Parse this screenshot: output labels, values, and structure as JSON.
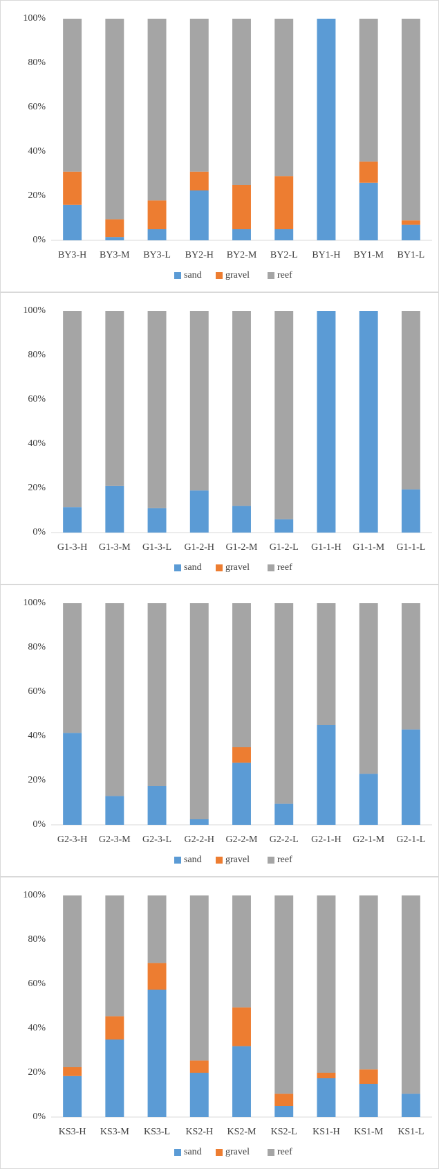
{
  "chart_data": [
    {
      "type": "bar",
      "stacked": true,
      "categories": [
        "BY3-H",
        "BY3-M",
        "BY3-L",
        "BY2-H",
        "BY2-M",
        "BY2-L",
        "BY1-H",
        "BY1-M",
        "BY1-L"
      ],
      "series": [
        {
          "name": "sand",
          "color": "#5b9bd5",
          "values": [
            16,
            1.5,
            5,
            22.5,
            5,
            5,
            100,
            26,
            7
          ]
        },
        {
          "name": "gravel",
          "color": "#ed7d31",
          "values": [
            15,
            8,
            13,
            8.5,
            20,
            24,
            0,
            9.5,
            2
          ]
        },
        {
          "name": "reef",
          "color": "#a5a5a5",
          "values": [
            69,
            90.5,
            82,
            69,
            75,
            71,
            0,
            64.5,
            91
          ]
        }
      ],
      "ylim": [
        0,
        100
      ],
      "yticks": [
        {
          "value": 0,
          "label": "0%"
        },
        {
          "value": 20,
          "label": "20%"
        },
        {
          "value": 40,
          "label": "40%"
        },
        {
          "value": 60,
          "label": "60%"
        },
        {
          "value": 80,
          "label": "80%"
        },
        {
          "value": 100,
          "label": "100%"
        }
      ],
      "legend": "bottom"
    },
    {
      "type": "bar",
      "stacked": true,
      "categories": [
        "G1-3-H",
        "G1-3-M",
        "G1-3-L",
        "G1-2-H",
        "G1-2-M",
        "G1-2-L",
        "G1-1-H",
        "G1-1-M",
        "G1-1-L"
      ],
      "series": [
        {
          "name": "sand",
          "color": "#5b9bd5",
          "values": [
            11.5,
            21,
            11,
            19,
            12,
            6,
            100,
            100,
            19.5
          ]
        },
        {
          "name": "gravel",
          "color": "#ed7d31",
          "values": [
            0,
            0,
            0,
            0,
            0,
            0,
            0,
            0,
            0
          ]
        },
        {
          "name": "reef",
          "color": "#a5a5a5",
          "values": [
            88.5,
            79,
            89,
            81,
            88,
            94,
            0,
            0,
            80.5
          ]
        }
      ],
      "ylim": [
        0,
        100
      ],
      "yticks": [
        {
          "value": 0,
          "label": "0%"
        },
        {
          "value": 20,
          "label": "20%"
        },
        {
          "value": 40,
          "label": "40%"
        },
        {
          "value": 60,
          "label": "60%"
        },
        {
          "value": 80,
          "label": "80%"
        },
        {
          "value": 100,
          "label": "100%"
        }
      ],
      "legend": "bottom"
    },
    {
      "type": "bar",
      "stacked": true,
      "categories": [
        "G2-3-H",
        "G2-3-M",
        "G2-3-L",
        "G2-2-H",
        "G2-2-M",
        "G2-2-L",
        "G2-1-H",
        "G2-1-M",
        "G2-1-L"
      ],
      "series": [
        {
          "name": "sand",
          "color": "#5b9bd5",
          "values": [
            41.5,
            13,
            17.5,
            2.5,
            28,
            9.5,
            45,
            23,
            43
          ]
        },
        {
          "name": "gravel",
          "color": "#ed7d31",
          "values": [
            0,
            0,
            0,
            0,
            7,
            0,
            0,
            0,
            0
          ]
        },
        {
          "name": "reef",
          "color": "#a5a5a5",
          "values": [
            58.5,
            87,
            82.5,
            97.5,
            65,
            90.5,
            55,
            77,
            57
          ]
        }
      ],
      "ylim": [
        0,
        100
      ],
      "yticks": [
        {
          "value": 0,
          "label": "0%"
        },
        {
          "value": 20,
          "label": "20%"
        },
        {
          "value": 40,
          "label": "40%"
        },
        {
          "value": 60,
          "label": "60%"
        },
        {
          "value": 80,
          "label": "80%"
        },
        {
          "value": 100,
          "label": "100%"
        }
      ],
      "legend": "bottom"
    },
    {
      "type": "bar",
      "stacked": true,
      "categories": [
        "KS3-H",
        "KS3-M",
        "KS3-L",
        "KS2-H",
        "KS2-M",
        "KS2-L",
        "KS1-H",
        "KS1-M",
        "KS1-L"
      ],
      "series": [
        {
          "name": "sand",
          "color": "#5b9bd5",
          "values": [
            18.5,
            35,
            57.5,
            20,
            32,
            5,
            17.5,
            15,
            10.5
          ]
        },
        {
          "name": "gravel",
          "color": "#ed7d31",
          "values": [
            4,
            10.5,
            12,
            5.5,
            17.5,
            5.5,
            2.5,
            6.5,
            0
          ]
        },
        {
          "name": "reef",
          "color": "#a5a5a5",
          "values": [
            77.5,
            54.5,
            30.5,
            74.5,
            50.5,
            89.5,
            80,
            78.5,
            89.5
          ]
        }
      ],
      "ylim": [
        0,
        100
      ],
      "yticks": [
        {
          "value": 0,
          "label": "0%"
        },
        {
          "value": 20,
          "label": "20%"
        },
        {
          "value": 40,
          "label": "40%"
        },
        {
          "value": 60,
          "label": "60%"
        },
        {
          "value": 80,
          "label": "80%"
        },
        {
          "value": 100,
          "label": "100%"
        }
      ],
      "legend": "bottom"
    }
  ]
}
